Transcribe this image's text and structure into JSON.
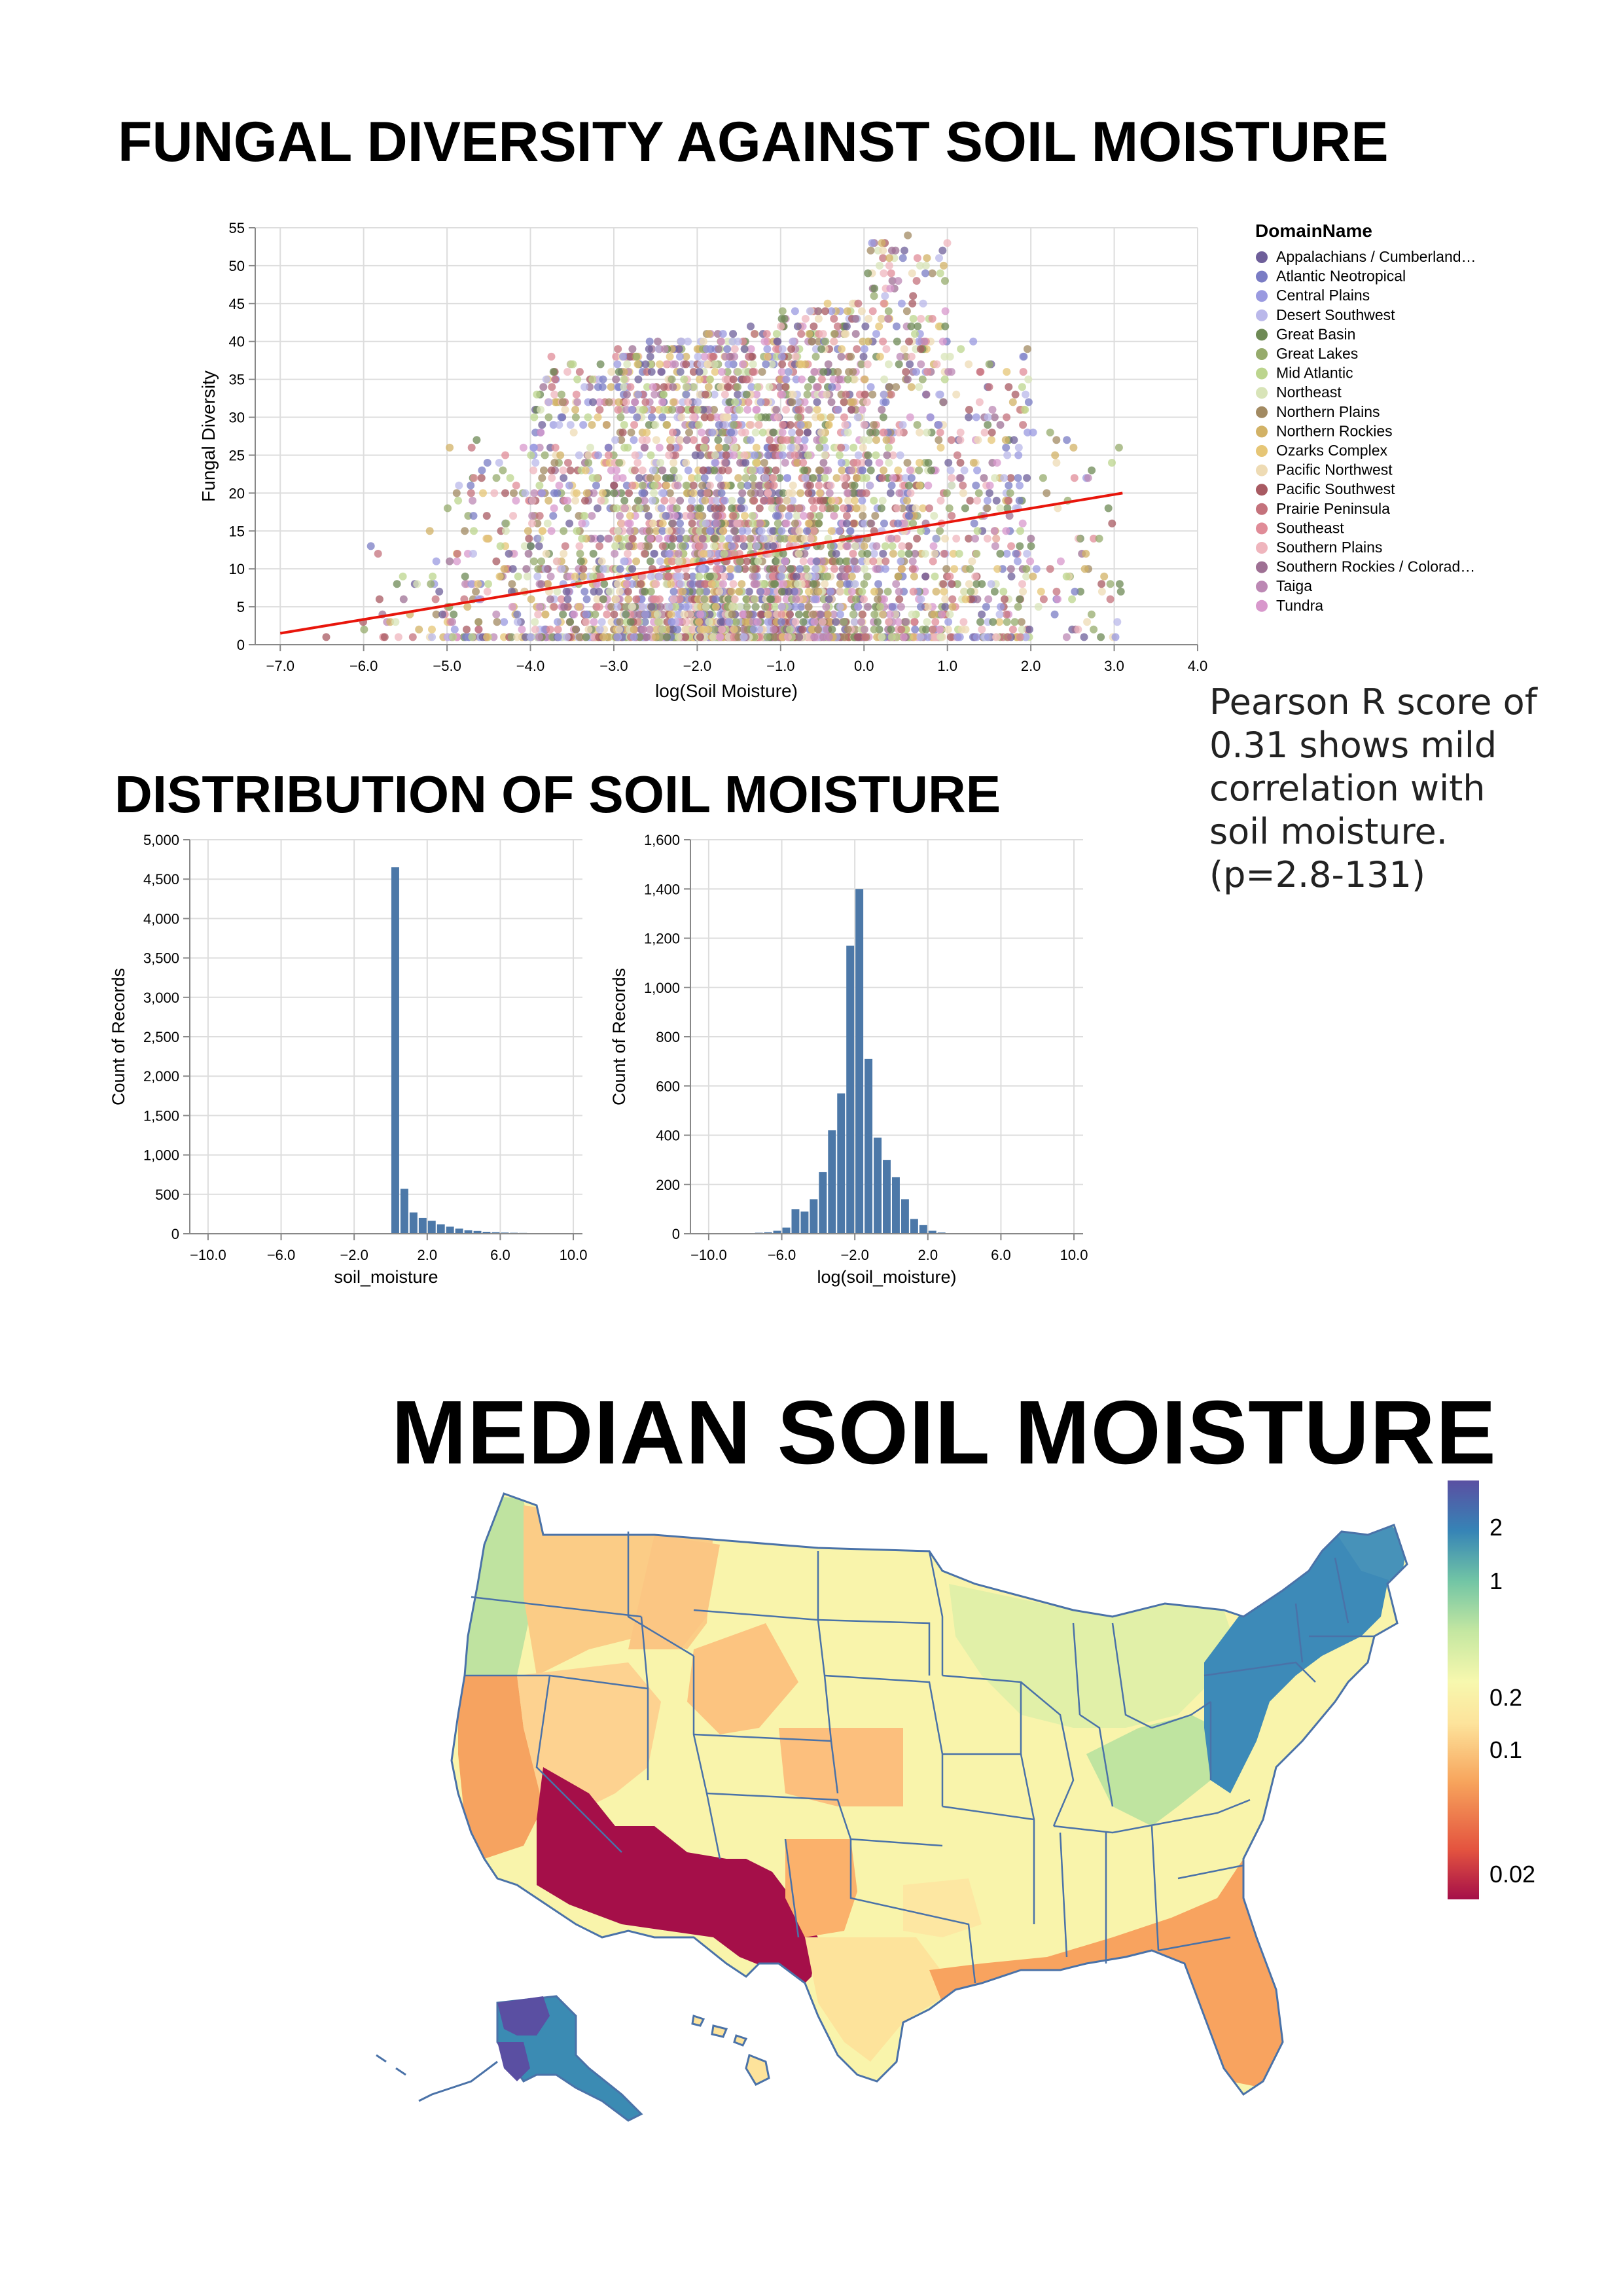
{
  "headings": {
    "scatter": "FUNGAL DIVERSITY AGAINST SOIL MOISTURE",
    "distribution": "DISTRIBUTION OF SOIL MOISTURE",
    "map": "MEDIAN SOIL MOISTURE"
  },
  "note_lines": [
    "Pearson R score of",
    "0.31 shows mild",
    "correlation with",
    "soil moisture.",
    "(p=2.8-131)"
  ],
  "colors": {
    "gridline": "#dddddd",
    "axis": "#888888",
    "bar": "#4c78a8",
    "regression": "#e8150b",
    "state_border": "#4a72a8"
  },
  "chart_data": [
    {
      "type": "scatter",
      "xlabel": "log(Soil Moisture)",
      "ylabel": "Fungal Diversity",
      "xlim": [
        -7.3,
        4.0
      ],
      "ylim": [
        0,
        55
      ],
      "xticks": [
        -7,
        -6,
        -5,
        -4,
        -3,
        -2,
        -1,
        0,
        1,
        2,
        3,
        4
      ],
      "xtick_labels": [
        "−7.0",
        "−6.0",
        "−5.0",
        "−4.0",
        "−3.0",
        "−2.0",
        "−1.0",
        "0.0",
        "1.0",
        "2.0",
        "3.0",
        "4.0"
      ],
      "yticks": [
        0,
        5,
        10,
        15,
        20,
        25,
        30,
        35,
        40,
        45,
        50,
        55
      ],
      "grid": true,
      "legend": {
        "title": "DomainName",
        "position": "right",
        "entries": [
          {
            "name": "Appalachians / Cumberland…",
            "color": "#6e5f9a"
          },
          {
            "name": "Atlantic Neotropical",
            "color": "#7a7cc4"
          },
          {
            "name": "Central Plains",
            "color": "#9a9ae0"
          },
          {
            "name": "Desert Southwest",
            "color": "#bab8ea"
          },
          {
            "name": "Great Basin",
            "color": "#6e8a55"
          },
          {
            "name": "Great Lakes",
            "color": "#96ab6c"
          },
          {
            "name": "Mid Atlantic",
            "color": "#bcd58e"
          },
          {
            "name": "Northeast",
            "color": "#d8e4b8"
          },
          {
            "name": "Northern Plains",
            "color": "#a28a62"
          },
          {
            "name": "Northern Rockies",
            "color": "#d2b266"
          },
          {
            "name": "Ozarks Complex",
            "color": "#e6c676"
          },
          {
            "name": "Pacific Northwest",
            "color": "#eedbb4"
          },
          {
            "name": "Pacific Southwest",
            "color": "#a85a62"
          },
          {
            "name": "Prairie Peninsula",
            "color": "#c4727c"
          },
          {
            "name": "Southeast",
            "color": "#e08c98"
          },
          {
            "name": "Southern Plains",
            "color": "#efb5bd"
          },
          {
            "name": "Southern Rockies / Colorad…",
            "color": "#9e7094"
          },
          {
            "name": "Taiga",
            "color": "#bc88b4"
          },
          {
            "name": "Tundra",
            "color": "#d898cc"
          }
        ]
      },
      "regression_line": {
        "x": [
          -7.0,
          3.1
        ],
        "y": [
          1.5,
          20.0
        ]
      },
      "point_density": [
        {
          "x_range": [
            -7.3,
            -6.0
          ],
          "y_range": [
            0,
            6
          ],
          "approx_count": 4
        },
        {
          "x_range": [
            -6.0,
            -5.0
          ],
          "y_range": [
            0,
            15
          ],
          "approx_count": 60
        },
        {
          "x_range": [
            -5.0,
            -4.0
          ],
          "y_range": [
            0,
            28
          ],
          "approx_count": 260
        },
        {
          "x_range": [
            -4.0,
            -3.0
          ],
          "y_range": [
            0,
            38
          ],
          "approx_count": 700
        },
        {
          "x_range": [
            -3.0,
            -2.0
          ],
          "y_range": [
            0,
            40
          ],
          "approx_count": 1400
        },
        {
          "x_range": [
            -2.0,
            -1.0
          ],
          "y_range": [
            0,
            42
          ],
          "approx_count": 1900
        },
        {
          "x_range": [
            -1.0,
            0.0
          ],
          "y_range": [
            0,
            45
          ],
          "approx_count": 1500
        },
        {
          "x_range": [
            0.0,
            1.0
          ],
          "y_range": [
            0,
            54
          ],
          "approx_count": 900
        },
        {
          "x_range": [
            1.0,
            2.0
          ],
          "y_range": [
            0,
            40
          ],
          "approx_count": 450
        },
        {
          "x_range": [
            2.0,
            3.1
          ],
          "y_range": [
            0,
            28
          ],
          "approx_count": 120
        }
      ]
    },
    {
      "type": "bar",
      "title": "",
      "xlabel": "soil_moisture",
      "ylabel": "Count of Records",
      "xlim": [
        -11,
        10.5
      ],
      "ylim": [
        0,
        5000
      ],
      "xticks": [
        -10,
        -6,
        -2,
        2,
        6,
        10
      ],
      "xtick_labels": [
        "−10.0",
        "−6.0",
        "−2.0",
        "2.0",
        "6.0",
        "10.0"
      ],
      "yticks": [
        0,
        500,
        1000,
        1500,
        2000,
        2500,
        3000,
        3500,
        4000,
        4500,
        5000
      ],
      "ytick_labels": [
        "0",
        "500",
        "1,000",
        "1,500",
        "2,000",
        "2,500",
        "3,000",
        "3,500",
        "4,000",
        "4,500",
        "5,000"
      ],
      "bin_edges_start": 0,
      "bin_width": 0.5,
      "values": [
        4650,
        570,
        270,
        200,
        165,
        120,
        90,
        65,
        45,
        35,
        25,
        20,
        15,
        12,
        10,
        8,
        6,
        5,
        4,
        3
      ]
    },
    {
      "type": "bar",
      "title": "",
      "xlabel": "log(soil_moisture)",
      "ylabel": "Count of Records",
      "xlim": [
        -11,
        10.5
      ],
      "ylim": [
        0,
        1600
      ],
      "xticks": [
        -10,
        -6,
        -2,
        2,
        6,
        10
      ],
      "xtick_labels": [
        "−10.0",
        "−6.0",
        "−2.0",
        "2.0",
        "6.0",
        "10.0"
      ],
      "yticks": [
        0,
        200,
        400,
        600,
        800,
        1000,
        1200,
        1400,
        1600
      ],
      "ytick_labels": [
        "0",
        "200",
        "400",
        "600",
        "800",
        "1,000",
        "1,200",
        "1,400",
        "1,600"
      ],
      "bin_edges_start": -7.5,
      "bin_width": 0.5,
      "values": [
        4,
        6,
        12,
        25,
        100,
        90,
        140,
        250,
        420,
        570,
        1170,
        1400,
        710,
        390,
        300,
        230,
        140,
        60,
        35,
        12,
        5
      ]
    }
  ],
  "map": {
    "colorbar_ticks": [
      "2",
      "1",
      "0.2",
      "0.1",
      "0.02"
    ],
    "colorscale": [
      "#a50f49",
      "#e4543f",
      "#f7a45c",
      "#fde39b",
      "#f7f8ae",
      "#c4e7a1",
      "#72c5a5",
      "#3684b6",
      "#5a4fa2"
    ]
  }
}
